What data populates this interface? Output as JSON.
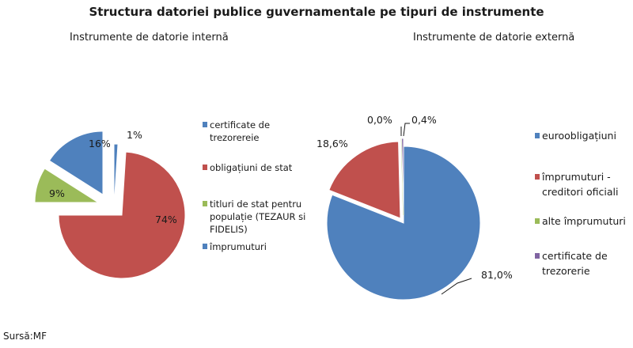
{
  "page_title": "Structura datoriei publice guvernamentale pe tipuri de instrumente",
  "source": "Sursă:MF",
  "chart_data": [
    {
      "type": "pie",
      "title": "Instrumente de datorie internă",
      "labels": [
        "certificate de trezorereie",
        "obligațiuni de stat",
        "titluri de stat pentru populație (TEZAUR si FIDELIS)",
        "împrumuturi"
      ],
      "values": [
        1,
        74,
        9,
        16
      ],
      "value_labels": [
        "1%",
        "74%",
        "9%",
        "16%"
      ],
      "colors": [
        "#4f81bd",
        "#c0504d",
        "#9bbb59",
        "#4f81bd"
      ],
      "exploded": true,
      "legend_position": "right"
    },
    {
      "type": "pie",
      "title": "Instrumente de datorie externă",
      "labels": [
        "euroobligațiuni",
        "împrumuturi - creditori oficiali",
        "alte împrumuturi",
        "certificate de trezorerie"
      ],
      "values": [
        81.0,
        18.6,
        0.0,
        0.4
      ],
      "value_labels": [
        "81,0%",
        "18,6%",
        "0,0%",
        "0,4%"
      ],
      "colors": [
        "#4f81bd",
        "#c0504d",
        "#9bbb59",
        "#8064a2"
      ],
      "exploded": true,
      "legend_position": "right"
    }
  ]
}
